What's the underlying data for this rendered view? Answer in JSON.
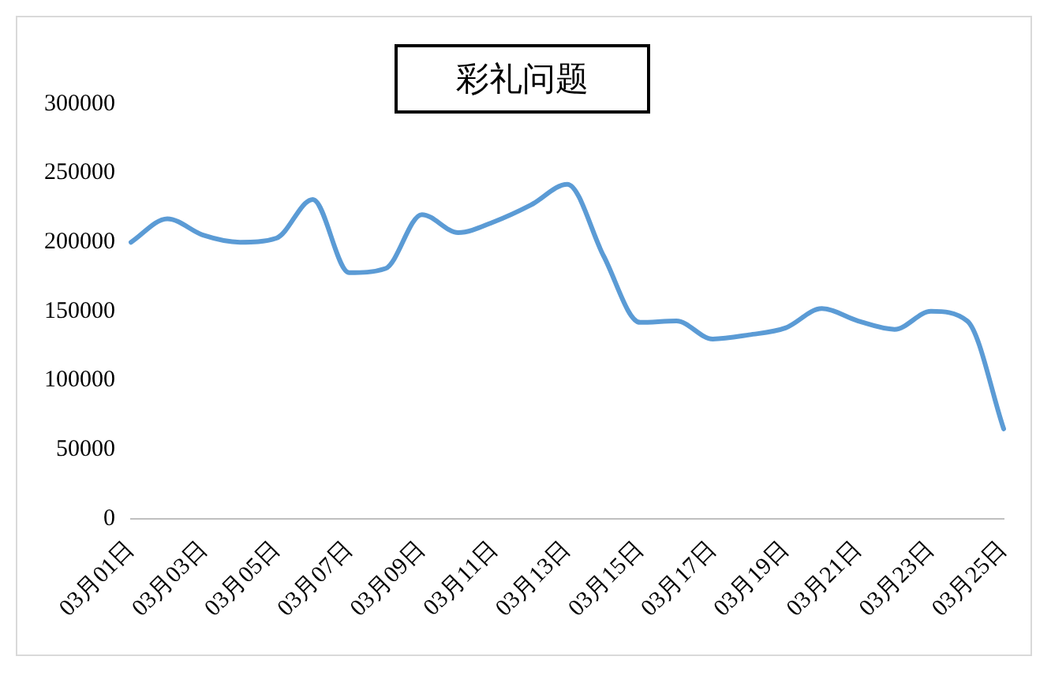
{
  "chart_data": {
    "type": "line",
    "title": "彩礼问题",
    "categories": [
      "03月01日",
      null,
      "03月03日",
      null,
      "03月05日",
      null,
      "03月07日",
      null,
      "03月09日",
      null,
      "03月11日",
      null,
      "03月13日",
      null,
      "03月15日",
      null,
      "03月17日",
      null,
      "03月19日",
      null,
      "03月21日",
      null,
      "03月23日",
      null,
      "03月25日"
    ],
    "series": [
      {
        "color": "#5b9bd5",
        "values": [
          200000,
          217000,
          205000,
          200000,
          203000,
          231000,
          178000,
          181000,
          220000,
          207000,
          215000,
          227000,
          242000,
          190000,
          142000,
          143000,
          130000,
          133000,
          138000,
          152000,
          143000,
          137000,
          150000,
          143000,
          65000
        ]
      }
    ],
    "ylim": [
      0,
      300000
    ],
    "yticks": [
      0,
      50000,
      100000,
      150000,
      200000,
      250000,
      300000
    ],
    "grid": false,
    "legend": false,
    "marker": "none",
    "line_style": "solid"
  }
}
